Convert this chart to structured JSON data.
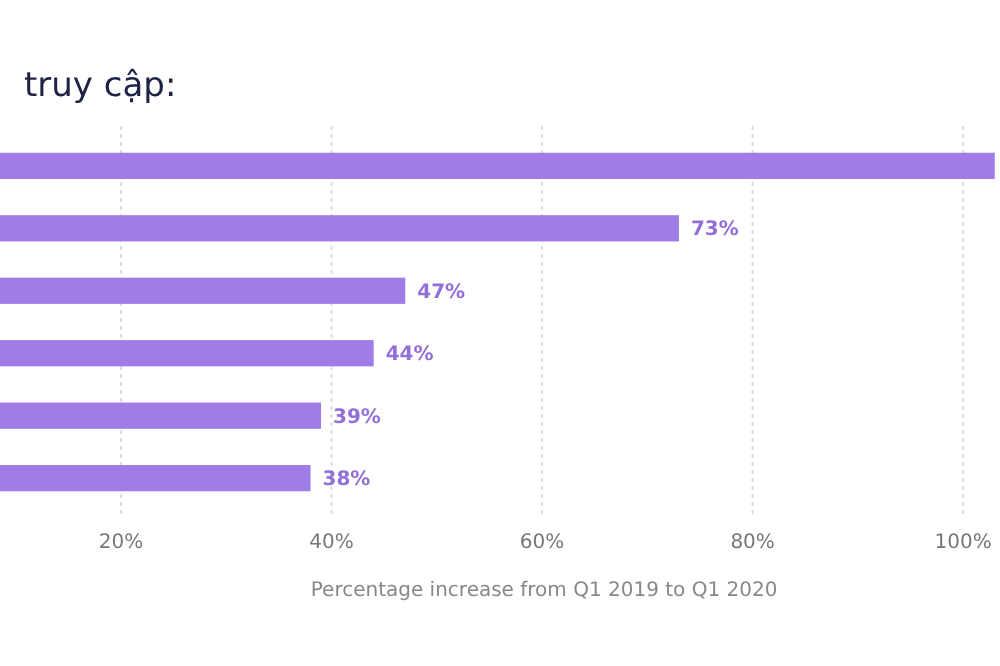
{
  "chart_data": {
    "type": "bar",
    "orientation": "horizontal",
    "title": "truy cập:",
    "xlabel": "Percentage increase from Q1 2019 to Q1 2020",
    "categories": [
      null,
      null,
      null,
      null,
      null,
      null
    ],
    "values": [
      103,
      73,
      47,
      44,
      39,
      38
    ],
    "value_labels": [
      null,
      "73%",
      "47%",
      "44%",
      "39%",
      "38%"
    ],
    "color": "#a07de6",
    "xlim": [
      8.5,
      103.5
    ],
    "xticks": [
      {
        "value": 20,
        "label": "20%"
      },
      {
        "value": 40,
        "label": "40%"
      },
      {
        "value": 60,
        "label": "60%"
      },
      {
        "value": 80,
        "label": "80%"
      },
      {
        "value": 100,
        "label": "100%"
      }
    ],
    "grid": "x"
  }
}
